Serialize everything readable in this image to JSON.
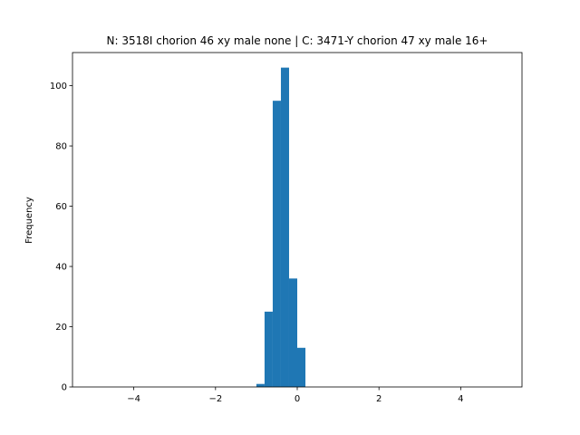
{
  "chart_data": {
    "type": "histogram",
    "title": "N: 3518I chorion 46 xy male none | C: 3471-Y chorion 47 xy male 16+",
    "ylabel": "Frequency",
    "bins": [
      -1.0,
      -0.8,
      -0.6,
      -0.4,
      -0.2,
      0,
      0.2
    ],
    "values": [
      1,
      25,
      95,
      106,
      36,
      13
    ],
    "color": "#1f77b4",
    "xlim": [
      -5.5,
      5.5
    ],
    "xticks": [
      {
        "value": -4,
        "label": "−4"
      },
      {
        "value": -2,
        "label": "−2"
      },
      0,
      2,
      4
    ],
    "ylim": [
      0,
      111
    ],
    "yticks": [
      0,
      20,
      40,
      60,
      80,
      100
    ]
  }
}
